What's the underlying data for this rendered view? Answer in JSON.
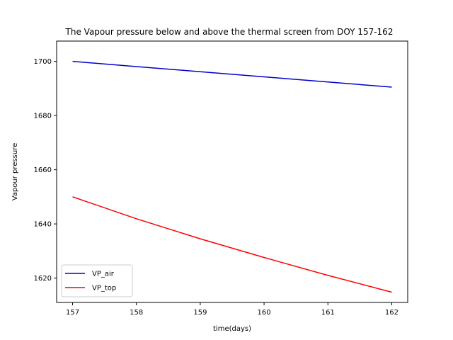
{
  "chart_data": {
    "type": "line",
    "title": "The Vapour pressure below and above the thermal screen from DOY 157-162",
    "xlabel": "time(days)",
    "ylabel": "Vapour pressure",
    "x": [
      157,
      162
    ],
    "xlim": [
      156.75,
      162.25
    ],
    "ylim": [
      1611,
      1707.5
    ],
    "xticks": [
      157,
      158,
      159,
      160,
      161,
      162
    ],
    "yticks": [
      1620,
      1640,
      1660,
      1680,
      1700
    ],
    "grid": false,
    "legend_position": "lower-left",
    "series": [
      {
        "name": "VP_air",
        "color": "#0000cc",
        "x": [
          157,
          158,
          159,
          160,
          161,
          162
        ],
        "values": [
          1700.0,
          1698.1,
          1696.2,
          1694.3,
          1692.4,
          1690.5
        ]
      },
      {
        "name": "VP_top",
        "color": "#ff0000",
        "x": [
          157,
          158,
          159,
          160,
          161,
          162
        ],
        "values": [
          1650.0,
          1641.9,
          1634.5,
          1627.6,
          1621.0,
          1614.8
        ]
      }
    ]
  }
}
